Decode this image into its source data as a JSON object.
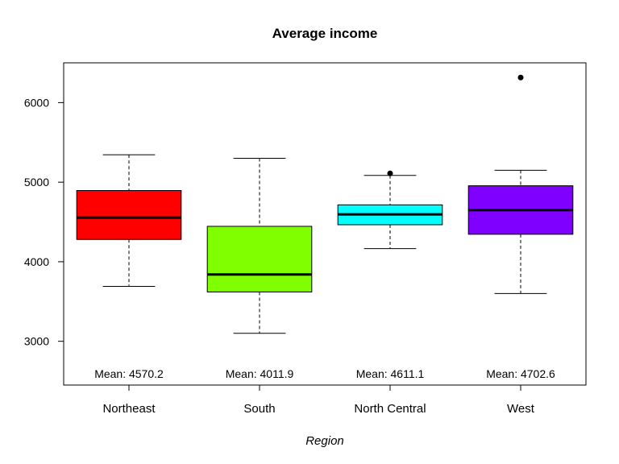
{
  "chart_data": {
    "type": "box",
    "title": "Average income",
    "xlabel": "Region",
    "ylabel": "",
    "ylim": [
      2450,
      6500
    ],
    "yticks": [
      3000,
      4000,
      5000,
      6000
    ],
    "grid": false,
    "legend": "none",
    "categories": [
      "Northeast",
      "South",
      "North Central",
      "West"
    ],
    "series": [
      {
        "category": "Northeast",
        "color": "#FF0000",
        "whisker_low": 3690,
        "q1": 4280,
        "median": 4555,
        "q3": 4895,
        "whisker_high": 5345,
        "outliers": [],
        "mean_label": "Mean: 4570.2"
      },
      {
        "category": "South",
        "color": "#80FF00",
        "whisker_low": 3100,
        "q1": 3620,
        "median": 3840,
        "q3": 4445,
        "whisker_high": 5300,
        "outliers": [],
        "mean_label": "Mean: 4011.9"
      },
      {
        "category": "North Central",
        "color": "#00FFFF",
        "whisker_low": 4165,
        "q1": 4465,
        "median": 4595,
        "q3": 4715,
        "whisker_high": 5085,
        "outliers": [
          5110
        ],
        "mean_label": "Mean: 4611.1"
      },
      {
        "category": "West",
        "color": "#8000FF",
        "whisker_low": 3600,
        "q1": 4345,
        "median": 4650,
        "q3": 4955,
        "whisker_high": 5150,
        "outliers": [
          6315
        ],
        "mean_label": "Mean: 4702.6"
      }
    ]
  }
}
